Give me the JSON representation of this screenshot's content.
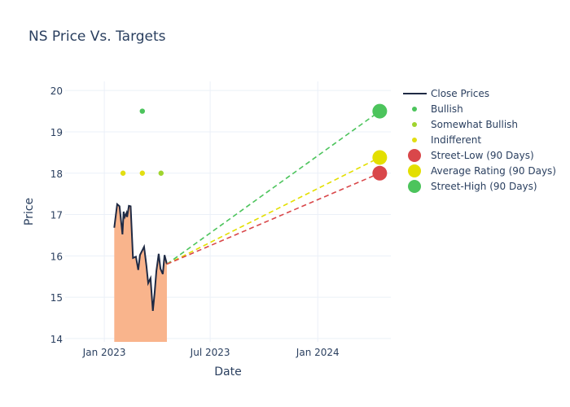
{
  "chart_data": {
    "type": "line",
    "title": "NS Price Vs. Targets",
    "xlabel": "Date",
    "ylabel": "Price",
    "xlim": [
      "2022-10-26",
      "2024-05-05"
    ],
    "ylim": [
      13.92,
      20.22
    ],
    "x_ticks": [
      {
        "date": "2023-01-01",
        "label": "Jan 2023"
      },
      {
        "date": "2023-07-01",
        "label": "Jul 2023"
      },
      {
        "date": "2024-01-01",
        "label": "Jan 2024"
      }
    ],
    "y_ticks": [
      14,
      15,
      16,
      17,
      18,
      19,
      20
    ],
    "grid": true,
    "legend_position": "right",
    "close_prices": {
      "name": "Close Prices",
      "color": "#1f2a44",
      "fill_color": "#f9b48c",
      "x": [
        "2023-01-18",
        "2023-01-23",
        "2023-01-27",
        "2023-02-01",
        "2023-02-03",
        "2023-02-05",
        "2023-02-08",
        "2023-02-09",
        "2023-02-12",
        "2023-02-15",
        "2023-02-19",
        "2023-02-24",
        "2023-02-28",
        "2023-03-03",
        "2023-03-10",
        "2023-03-14",
        "2023-03-17",
        "2023-03-21",
        "2023-03-25",
        "2023-03-28",
        "2023-03-31",
        "2023-04-04",
        "2023-04-07",
        "2023-04-11",
        "2023-04-14",
        "2023-04-18"
      ],
      "y": [
        16.68,
        17.25,
        17.2,
        16.52,
        17.07,
        16.94,
        17.04,
        16.94,
        17.21,
        17.2,
        15.95,
        15.98,
        15.66,
        16.02,
        16.22,
        15.76,
        15.34,
        15.46,
        14.67,
        15.1,
        15.63,
        16.05,
        15.69,
        15.56,
        16.02,
        15.8
      ]
    },
    "ratings": [
      {
        "name": "Bullish",
        "color": "#4cc45c",
        "points": [
          {
            "x": "2023-03-07",
            "y": 19.5
          }
        ]
      },
      {
        "name": "Somewhat Bullish",
        "color": "#9fd42e",
        "points": [
          {
            "x": "2023-04-08",
            "y": 18
          }
        ]
      },
      {
        "name": "Indifferent",
        "color": "#e2de12",
        "points": [
          {
            "x": "2023-02-02",
            "y": 18
          },
          {
            "x": "2023-03-07",
            "y": 18
          }
        ]
      }
    ],
    "targets": [
      {
        "name": "Street-Low (90 Days)",
        "color": "#d9474a",
        "x": "2024-04-16",
        "y": 18.0
      },
      {
        "name": "Average Rating (90 Days)",
        "color": "#e3df00",
        "x": "2024-04-16",
        "y": 18.38
      },
      {
        "name": "Street-High (90 Days)",
        "color": "#4cc45c",
        "x": "2024-04-16",
        "y": 19.5
      }
    ]
  }
}
